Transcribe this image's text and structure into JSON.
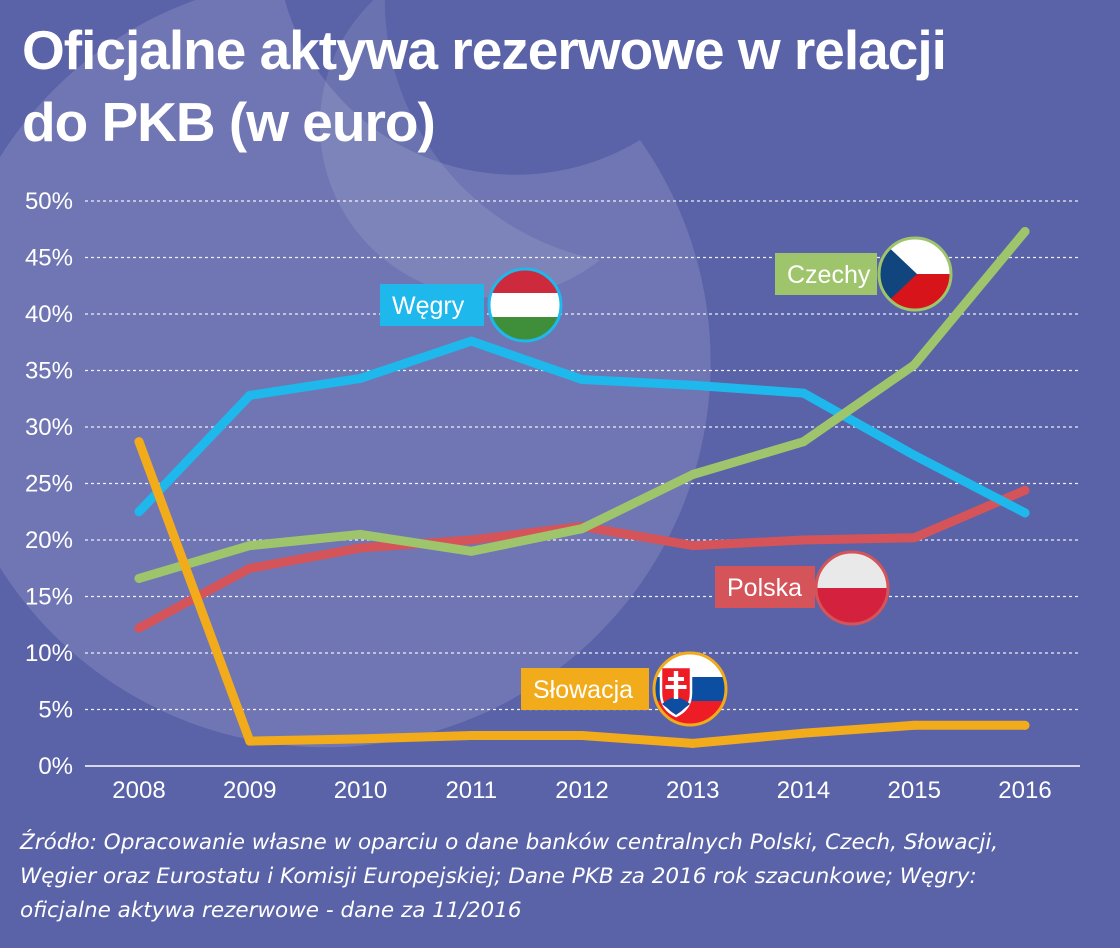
{
  "title": {
    "line1": "Oficjalne aktywa rezerwowe w relacji",
    "line2": "do PKB (w euro)"
  },
  "chart_data": {
    "type": "line",
    "title": "Oficjalne aktywa rezerwowe w relacji do PKB (w euro)",
    "x": [
      "2008",
      "2009",
      "2010",
      "2011",
      "2012",
      "2013",
      "2014",
      "2015",
      "2016"
    ],
    "y_ticks": [
      "0%",
      "5%",
      "10%",
      "15%",
      "20%",
      "25%",
      "30%",
      "35%",
      "40%",
      "45%",
      "50%"
    ],
    "ylim": [
      0,
      50
    ],
    "grid": "horizontal dashed",
    "series": [
      {
        "name": "Polska",
        "color": "#d5545a",
        "icon": "poland-flag-icon",
        "values": [
          12.2,
          17.5,
          19.3,
          20.0,
          21.2,
          19.5,
          20.0,
          20.2,
          24.4
        ]
      },
      {
        "name": "Węgry",
        "color": "#1fb8ec",
        "icon": "hungary-flag-icon",
        "values": [
          22.5,
          32.8,
          34.3,
          37.6,
          34.2,
          33.7,
          33.0,
          27.5,
          22.4
        ]
      },
      {
        "name": "Czechy",
        "color": "#9fc56c",
        "icon": "czech-flag-icon",
        "values": [
          16.6,
          19.5,
          20.5,
          19.0,
          21.0,
          25.8,
          28.7,
          35.5,
          47.3
        ]
      },
      {
        "name": "Słowacja",
        "color": "#f2ab1a",
        "icon": "slovakia-flag-icon",
        "values": [
          28.7,
          2.2,
          2.4,
          2.7,
          2.7,
          2.0,
          2.9,
          3.6,
          3.6
        ]
      }
    ]
  },
  "source": {
    "line1": "Źródło: Opracowanie własne w oparciu o dane banków centralnych Polski, Czech, Słowacji,",
    "line2": "Węgier oraz Eurostatu i Komisji Europejskiej; Dane PKB za 2016 rok szacunkowe; Węgry:",
    "line3": "oficjalne aktywa rezerwowe - dane za 11/2016"
  }
}
